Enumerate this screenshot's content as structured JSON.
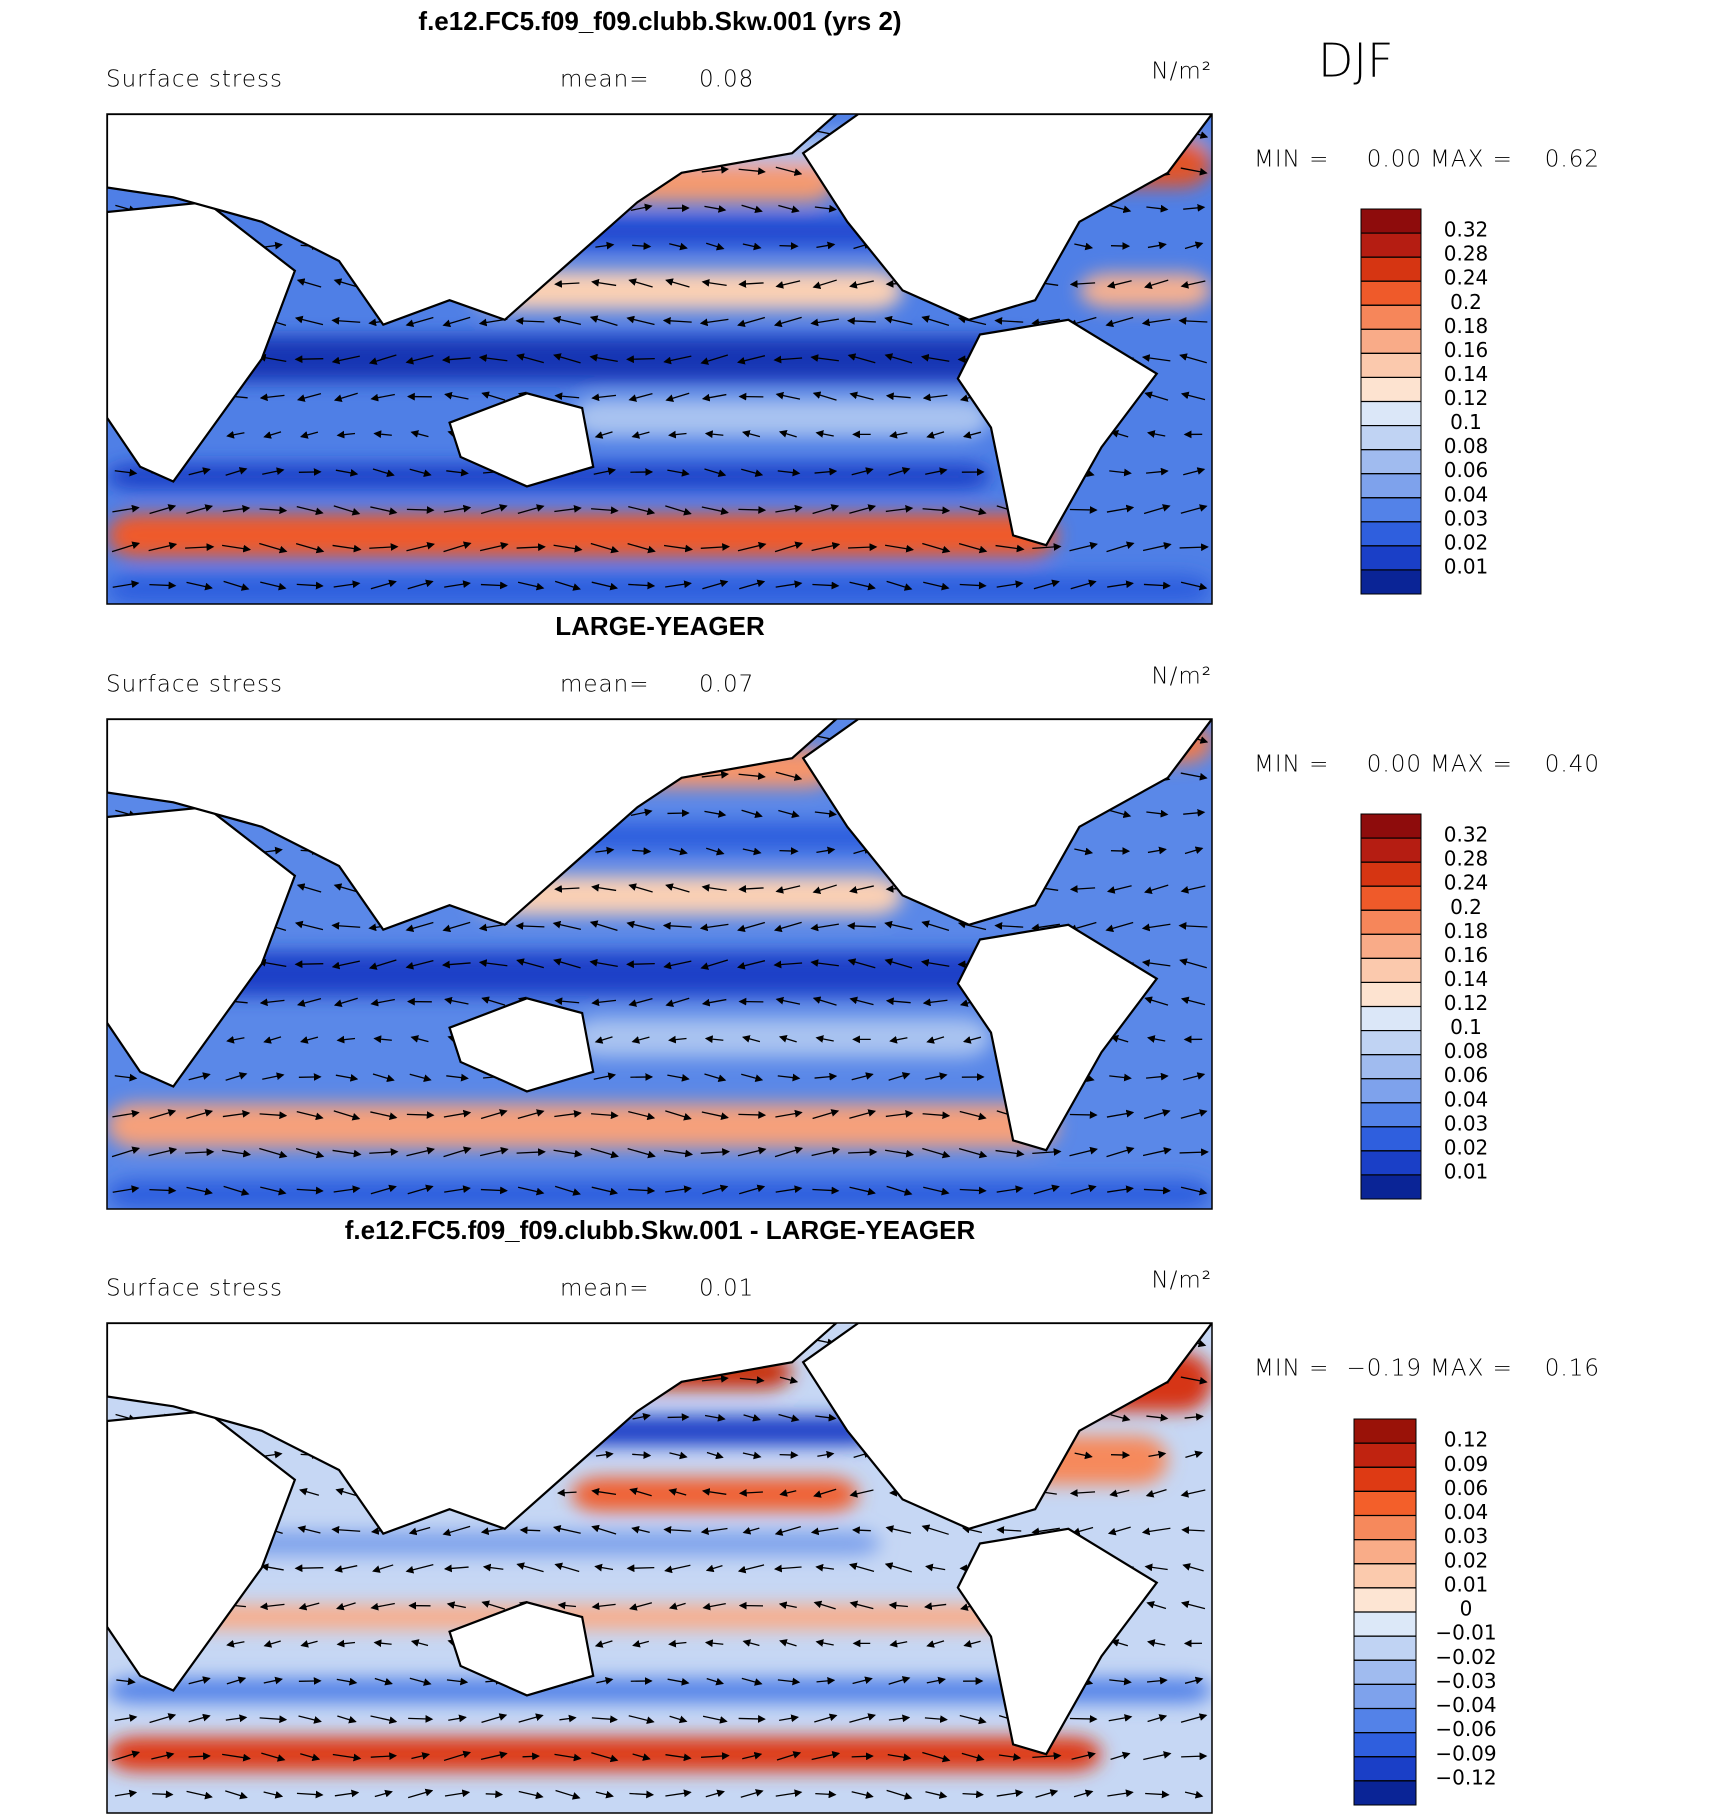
{
  "header": {
    "season": "DJF"
  },
  "panels": [
    {
      "title": "f.e12.FC5.f09_f09.clubb.Skw.001 (yrs 2)",
      "variable": "Surface stress",
      "mean_label": "mean=",
      "mean": 0.08,
      "units": "N/m²",
      "min_label": "MIN =",
      "min": {
        "value": 0,
        "label": "0.00"
      },
      "max_label": "MAX =",
      "max": 0.62,
      "colorbar": {
        "colors": [
          "#8e0c0c",
          "#b51d12",
          "#d63512",
          "#ef5a2a",
          "#f6865a",
          "#f9ab88",
          "#fbc9ad",
          "#fde3d0",
          "#dbe7f8",
          "#c0d3f3",
          "#a0bbef",
          "#7ea2ec",
          "#5382e8",
          "#2f5fde",
          "#1a3fc7",
          "#0a2496"
        ],
        "ticks": [
          0.32,
          0.28,
          0.24,
          0.2,
          0.18,
          0.16,
          0.14,
          0.12,
          0.1,
          0.08,
          0.06,
          0.04,
          0.03,
          0.02,
          0.01
        ]
      }
    },
    {
      "title": "LARGE-YEAGER",
      "variable": "Surface stress",
      "mean_label": "mean=",
      "mean": 0.07,
      "units": "N/m²",
      "min_label": "MIN =",
      "min": {
        "value": 0,
        "label": "0.00"
      },
      "max_label": "MAX =",
      "max": {
        "value": 0.4,
        "label": "0.40"
      },
      "colorbar": {
        "colors": [
          "#8e0c0c",
          "#b51d12",
          "#d63512",
          "#ef5a2a",
          "#f6865a",
          "#f9ab88",
          "#fbc9ad",
          "#fde3d0",
          "#dbe7f8",
          "#c0d3f3",
          "#a0bbef",
          "#7ea2ec",
          "#5382e8",
          "#2f5fde",
          "#1a3fc7",
          "#0a2496"
        ],
        "ticks": [
          0.32,
          0.28,
          0.24,
          0.2,
          0.18,
          0.16,
          0.14,
          0.12,
          0.1,
          0.08,
          0.06,
          0.04,
          0.03,
          0.02,
          0.01
        ]
      }
    },
    {
      "title": "f.e12.FC5.f09_f09.clubb.Skw.001 - LARGE-YEAGER",
      "variable": "Surface stress",
      "mean_label": "mean=",
      "mean": 0.01,
      "units": "N/m²",
      "min_label": "MIN =",
      "min": {
        "value": -0.19,
        "label": "−0.19"
      },
      "max_label": "MAX =",
      "max": 0.16,
      "colorbar": {
        "colors": [
          "#9a1208",
          "#c02310",
          "#de3a14",
          "#f35f2a",
          "#f6895c",
          "#f9ac88",
          "#fbcaad",
          "#fde5d3",
          "#dce8f8",
          "#c0d3f3",
          "#a0bbef",
          "#7ea2ec",
          "#5382e8",
          "#2f5fde",
          "#1a3fc7",
          "#0a2496"
        ],
        "ticks": [
          0.12,
          0.09,
          0.06,
          0.04,
          0.03,
          0.02,
          0.01,
          0,
          {
            "value": -0.01,
            "label": "−0.01"
          },
          {
            "value": -0.02,
            "label": "−0.02"
          },
          {
            "value": -0.03,
            "label": "−0.03"
          },
          {
            "value": -0.04,
            "label": "−0.04"
          },
          {
            "value": -0.06,
            "label": "−0.06"
          },
          {
            "value": -0.09,
            "label": "−0.09"
          },
          {
            "value": -0.12,
            "label": "−0.12"
          }
        ]
      }
    }
  ]
}
